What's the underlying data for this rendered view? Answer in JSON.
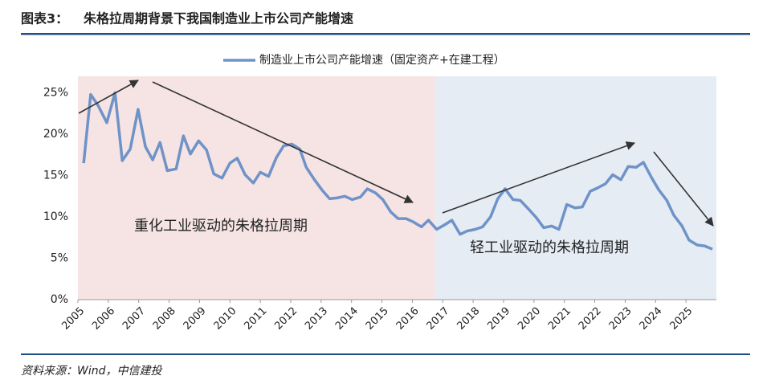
{
  "chart_data": {
    "type": "line",
    "header_label": "图表3：",
    "title": "朱格拉周期背景下我国制造业上市公司产能增速",
    "source": "资料来源：Wind，中信建投",
    "xlim": [
      2005,
      2026
    ],
    "xticks": [
      2005,
      2006,
      2007,
      2008,
      2009,
      2010,
      2011,
      2012,
      2013,
      2014,
      2015,
      2016,
      2017,
      2018,
      2019,
      2020,
      2021,
      2022,
      2023,
      2024,
      2025
    ],
    "ylim": [
      0,
      27
    ],
    "yticks": [
      {
        "value": 0,
        "label": "0%"
      },
      {
        "value": 5,
        "label": "5%"
      },
      {
        "value": 10,
        "label": "10%"
      },
      {
        "value": 15,
        "label": "15%"
      },
      {
        "value": 20,
        "label": "20%"
      },
      {
        "value": 25,
        "label": "25%"
      }
    ],
    "regions": [
      {
        "start": 2005,
        "end": 2016.75,
        "color": "#f6e4e4"
      },
      {
        "start": 2016.75,
        "end": 2026,
        "color": "#e6ecf4"
      }
    ],
    "annotations": [
      "重化工业驱动的朱格拉周期",
      "轻工业驱动的朱格拉周期"
    ],
    "x": [
      2005.19,
      2005.42,
      2005.66,
      2005.95,
      2006.22,
      2006.46,
      2006.72,
      2006.98,
      2007.22,
      2007.46,
      2007.7,
      2007.94,
      2008.23,
      2008.47,
      2008.7,
      2008.97,
      2009.23,
      2009.47,
      2009.74,
      2010.0,
      2010.24,
      2010.5,
      2010.77,
      2011.0,
      2011.27,
      2011.53,
      2011.77,
      2012.04,
      2012.3,
      2012.51,
      2012.78,
      2013.04,
      2013.28,
      2013.52,
      2013.78,
      2014.02,
      2014.29,
      2014.52,
      2014.79,
      2015.03,
      2015.29,
      2015.53,
      2015.79,
      2016.03,
      2016.3,
      2016.53,
      2016.8,
      2017.04,
      2017.3,
      2017.57,
      2017.8,
      2018.07,
      2018.31,
      2018.57,
      2018.81,
      2019.05,
      2019.31,
      2019.55,
      2019.81,
      2020.08,
      2020.32,
      2020.58,
      2020.82,
      2021.08,
      2021.35,
      2021.59,
      2021.85,
      2022.09,
      2022.35,
      2022.59,
      2022.86,
      2023.1,
      2023.36,
      2023.6,
      2023.86,
      2024.1,
      2024.37,
      2024.6,
      2024.87,
      2025.1,
      2025.37,
      2025.61,
      2025.87
    ],
    "series": [
      {
        "name": "制造业上市公司产能增速（固定资产+在建工程）",
        "color": "#6f93c8",
        "values": [
          16.5,
          24.8,
          23.5,
          21.4,
          25.0,
          16.8,
          18.2,
          23.0,
          18.5,
          16.9,
          19.0,
          15.6,
          15.8,
          19.8,
          17.6,
          19.2,
          18.1,
          15.2,
          14.7,
          16.5,
          17.1,
          15.1,
          14.1,
          15.4,
          14.9,
          17.2,
          18.6,
          18.8,
          18.2,
          16.0,
          14.5,
          13.2,
          12.2,
          12.3,
          12.5,
          12.1,
          12.4,
          13.4,
          12.9,
          12.1,
          10.6,
          9.8,
          9.8,
          9.4,
          8.8,
          9.6,
          8.5,
          9.0,
          9.6,
          7.9,
          8.3,
          8.5,
          8.8,
          10.0,
          12.2,
          13.4,
          12.1,
          12.0,
          11.0,
          9.9,
          8.7,
          8.9,
          8.5,
          11.5,
          11.1,
          11.2,
          13.1,
          13.5,
          14.0,
          15.1,
          14.5,
          16.1,
          16.0,
          16.6,
          14.8,
          13.3,
          12.0,
          10.2,
          8.9,
          7.2,
          6.6,
          6.5,
          6.1
        ]
      }
    ]
  }
}
